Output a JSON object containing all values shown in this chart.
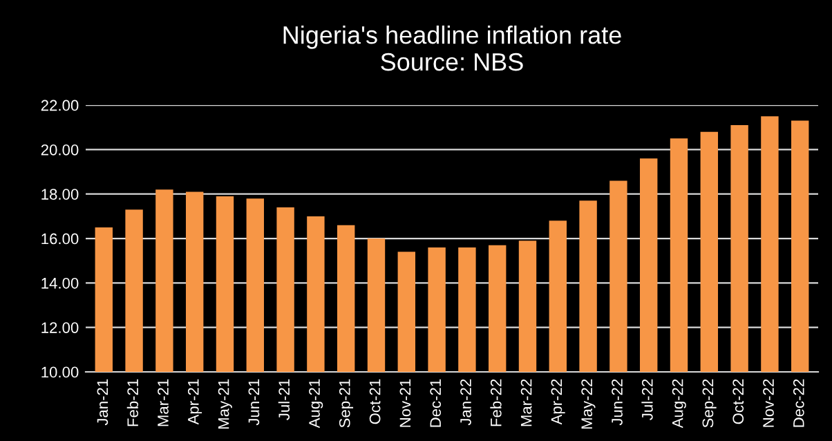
{
  "chart_data": {
    "type": "bar",
    "title": "Nigeria's headline inflation rate",
    "subtitle": "Source: NBS",
    "categories": [
      "Jan-21",
      "Feb-21",
      "Mar-21",
      "Apr-21",
      "May-21",
      "Jun-21",
      "Jul-21",
      "Aug-21",
      "Sep-21",
      "Oct-21",
      "Nov-21",
      "Dec-21",
      "Jan-22",
      "Feb-22",
      "Mar-22",
      "Apr-22",
      "May-22",
      "Jun-22",
      "Jul-22",
      "Aug-22",
      "Sep-22",
      "Oct-22",
      "Nov-22",
      "Dec-22"
    ],
    "values": [
      16.5,
      17.3,
      18.2,
      18.1,
      17.9,
      17.8,
      17.4,
      17.0,
      16.6,
      16.0,
      15.4,
      15.6,
      15.6,
      15.7,
      15.9,
      16.8,
      17.7,
      18.6,
      19.6,
      20.5,
      20.8,
      21.1,
      21.5,
      21.3
    ],
    "color": "#f79646",
    "ylim": [
      10,
      22
    ],
    "yticks": [
      {
        "value": 10,
        "label": "10.00"
      },
      {
        "value": 12,
        "label": "12.00"
      },
      {
        "value": 14,
        "label": "14.00"
      },
      {
        "value": 16,
        "label": "16.00"
      },
      {
        "value": 18,
        "label": "18.00"
      },
      {
        "value": 20,
        "label": "20.00"
      },
      {
        "value": 22,
        "label": "22.00"
      }
    ],
    "grid": "y",
    "legend": false
  }
}
